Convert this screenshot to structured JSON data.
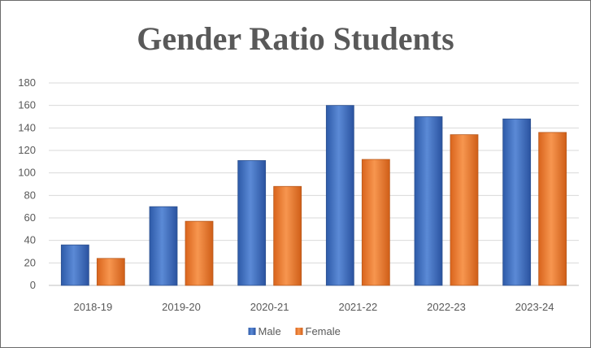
{
  "chart_data": {
    "type": "bar",
    "title": "Gender Ratio Students",
    "xlabel": "",
    "ylabel": "",
    "categories": [
      "2018-19",
      "2019-20",
      "2020-21",
      "2021-22",
      "2022-23",
      "2023-24"
    ],
    "series": [
      {
        "name": "Male",
        "values": [
          36,
          70,
          111,
          160,
          150,
          148
        ],
        "color": "#4472C4"
      },
      {
        "name": "Female",
        "values": [
          24,
          57,
          88,
          112,
          134,
          136
        ],
        "color": "#ED7D31"
      }
    ],
    "ylim": [
      0,
      180
    ],
    "yticks": [
      0,
      20,
      40,
      60,
      80,
      100,
      120,
      140,
      160,
      180
    ],
    "grid": true,
    "legend_position": "bottom"
  }
}
